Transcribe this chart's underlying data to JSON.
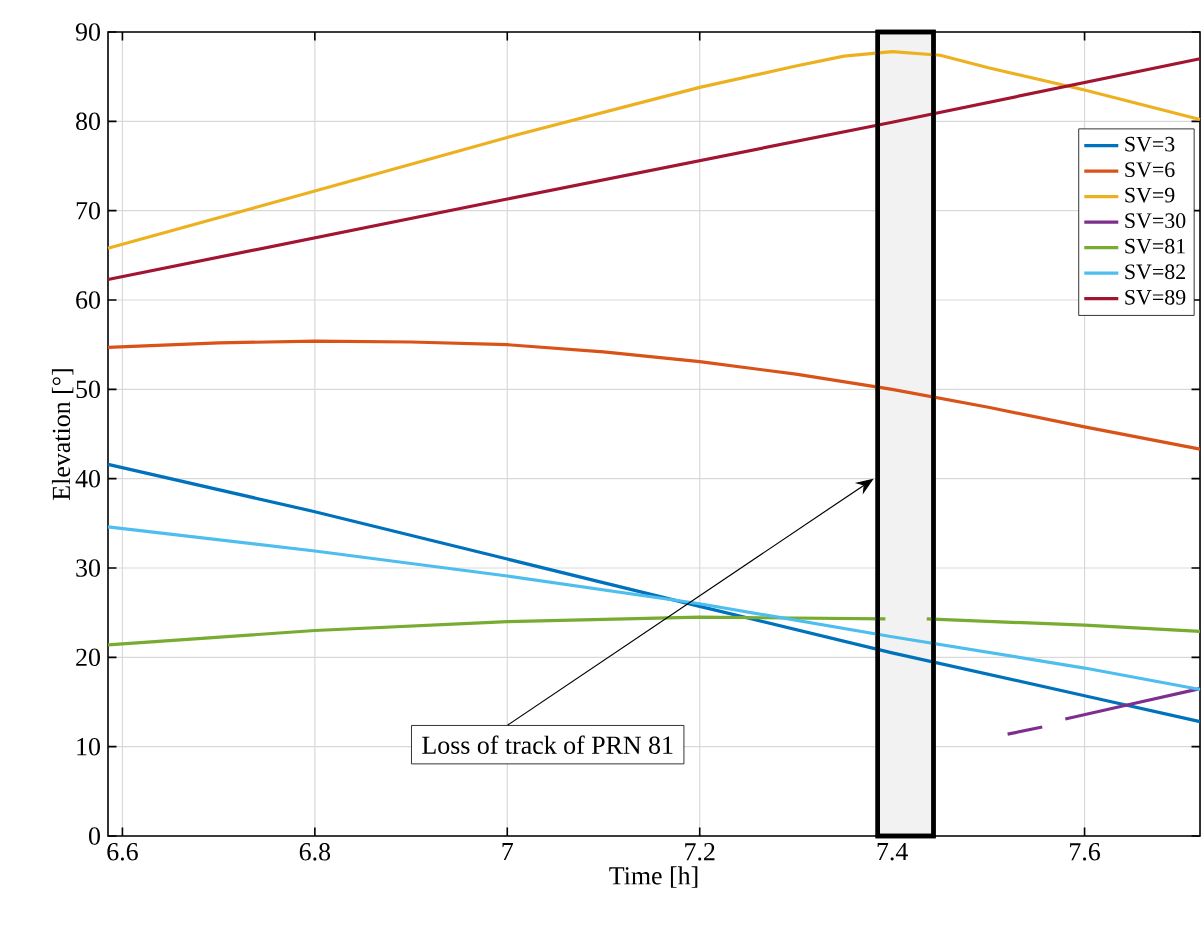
{
  "chart_data": {
    "type": "line",
    "xlabel": "Time [h]",
    "ylabel": "Elevation [°]",
    "xlim": [
      6.585,
      7.72
    ],
    "ylim": [
      0,
      90
    ],
    "xticks": [
      6.6,
      6.8,
      7,
      7.2,
      7.4,
      7.6
    ],
    "yticks": [
      0,
      10,
      20,
      30,
      40,
      50,
      60,
      70,
      80,
      90
    ],
    "grid": true,
    "legend": "top right",
    "series": [
      {
        "name": "SV=3",
        "color": "#0072bd",
        "x": [
          6.585,
          6.8,
          7.0,
          7.2,
          7.4,
          7.6,
          7.72
        ],
        "values": [
          41.6,
          36.3,
          31.0,
          25.7,
          20.5,
          15.7,
          12.8
        ]
      },
      {
        "name": "SV=6",
        "color": "#d95319",
        "x": [
          6.585,
          6.7,
          6.8,
          6.9,
          7.0,
          7.1,
          7.2,
          7.3,
          7.4,
          7.5,
          7.6,
          7.72
        ],
        "values": [
          54.7,
          55.2,
          55.4,
          55.3,
          55.0,
          54.2,
          53.1,
          51.7,
          50.0,
          48.0,
          45.8,
          43.3
        ]
      },
      {
        "name": "SV=9",
        "color": "#edb120",
        "x": [
          6.585,
          6.8,
          7.0,
          7.2,
          7.3,
          7.35,
          7.4,
          7.45,
          7.5,
          7.6,
          7.72
        ],
        "values": [
          65.8,
          72.2,
          78.2,
          83.8,
          86.2,
          87.3,
          87.8,
          87.4,
          86.0,
          83.5,
          80.2
        ]
      },
      {
        "name": "SV=30",
        "color": "#7e2f8e",
        "x": [
          7.52,
          7.556,
          7.57,
          7.58,
          7.65,
          7.72
        ],
        "values": [
          11.4,
          12.2,
          null,
          13.1,
          14.8,
          16.5
        ]
      },
      {
        "name": "SV=81",
        "color": "#77ac30",
        "x": [
          6.585,
          6.8,
          7.0,
          7.2,
          7.393,
          7.41,
          7.436,
          7.6,
          7.72
        ],
        "values": [
          21.4,
          23.0,
          24.0,
          24.5,
          24.3,
          null,
          24.3,
          23.6,
          22.9
        ]
      },
      {
        "name": "SV=82",
        "color": "#4dbeee",
        "x": [
          6.585,
          6.8,
          7.0,
          7.2,
          7.4,
          7.6,
          7.72
        ],
        "values": [
          34.6,
          31.9,
          29.1,
          26.0,
          22.3,
          18.8,
          16.4
        ]
      },
      {
        "name": "SV=89",
        "color": "#a2142f",
        "x": [
          6.585,
          7.0,
          7.4,
          7.72
        ],
        "values": [
          62.3,
          71.3,
          79.9,
          87.0
        ]
      }
    ],
    "bands": [
      {
        "axis": "x",
        "from": 7.385,
        "to": 7.443,
        "color": "#000000"
      }
    ],
    "annotations": [
      {
        "text": "Loss of track of PRN 81",
        "x": 7.385,
        "y": 40
      }
    ]
  }
}
